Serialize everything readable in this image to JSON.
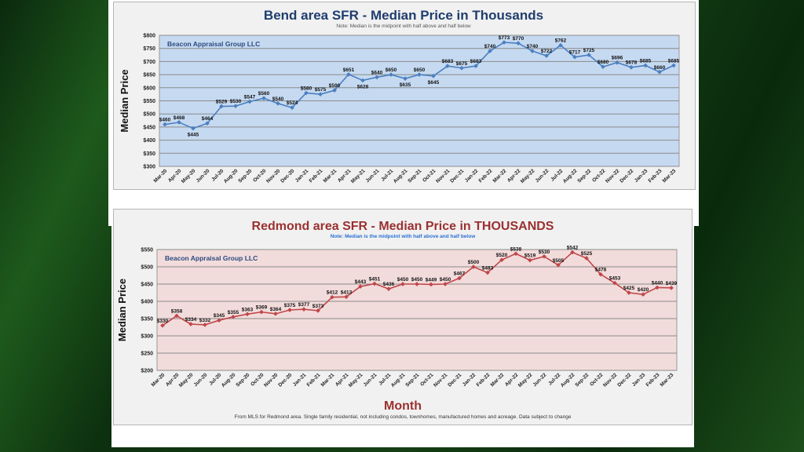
{
  "chart_data": [
    {
      "type": "line",
      "title": "Bend area SFR - Median Price in Thousands",
      "subtitle": "Note: Median is the midpoint with half above and half below",
      "watermark": "Beacon Appraisal Group LLC",
      "ylabel": "Median Price",
      "xlabel": "",
      "ylim": [
        300,
        800
      ],
      "ytick_step": 50,
      "grid": true,
      "color": "#4a7fc0",
      "plot_bg": "#c5d9f1",
      "title_color": "#1f3d6e",
      "categories": [
        "Mar-20",
        "Apr-20",
        "May-20",
        "Jun-20",
        "Jul-20",
        "Aug-20",
        "Sep-20",
        "Oct-20",
        "Nov-20",
        "Dec-20",
        "Jan-21",
        "Feb-21",
        "Mar-21",
        "Apr-21",
        "May-21",
        "Jun-21",
        "Jul-21",
        "Aug-21",
        "Sep-21",
        "Oct-21",
        "Nov-21",
        "Dec-21",
        "Jan-22",
        "Feb-22",
        "Mar-22",
        "Apr-22",
        "May-22",
        "Jun-22",
        "Jul-22",
        "Aug-22",
        "Sep-22",
        "Oct-22",
        "Nov-22",
        "Dec-22",
        "Jan-23",
        "Feb-23",
        "Mar-23"
      ],
      "values": [
        460,
        468,
        445,
        464,
        529,
        530,
        547,
        560,
        540,
        524,
        580,
        575,
        590,
        651,
        628,
        640,
        650,
        635,
        650,
        645,
        683,
        675,
        683,
        740,
        773,
        770,
        740,
        722,
        762,
        717,
        725,
        680,
        696,
        678,
        685,
        660,
        685
      ]
    },
    {
      "type": "line",
      "title": "Redmond area SFR - Median Price in THOUSANDS",
      "subtitle": "Note:  Median is the midpoint with half above and half below",
      "watermark": "Beacon Appraisal Group LLC",
      "ylabel": "Median Price",
      "xlabel": "Month",
      "footnote": "From MLS for Redmond area. Single family residential, not including condos, townhomes, manufactured homes and acreage.  Data subject to change",
      "ylim": [
        200,
        550
      ],
      "ytick_step": 50,
      "grid": true,
      "color": "#c0464a",
      "plot_bg": "#f2dcdb",
      "title_color": "#9b3030",
      "categories": [
        "Mar-20",
        "Apr-20",
        "May-20",
        "Jun-20",
        "Jul-20",
        "Aug-20",
        "Sep-20",
        "Oct-20",
        "Nov-20",
        "Dec-20",
        "Jan-21",
        "Feb-21",
        "Mar-21",
        "Apr-21",
        "May-21",
        "Jun-21",
        "Jul-21",
        "Aug-21",
        "Sep-21",
        "Oct-21",
        "Nov-21",
        "Dec-21",
        "Jan-22",
        "Feb-22",
        "Mar-22",
        "Apr-22",
        "May-22",
        "Jun-22",
        "Jul-22",
        "Aug-22",
        "Sep-22",
        "Oct-22",
        "Nov-22",
        "Dec-22",
        "Jan-23",
        "Feb-23",
        "Mar-23"
      ],
      "values": [
        330,
        358,
        334,
        332,
        345,
        355,
        363,
        369,
        364,
        375,
        377,
        373,
        412,
        413,
        443,
        451,
        436,
        450,
        450,
        449,
        450,
        467,
        500,
        483,
        520,
        538,
        519,
        530,
        505,
        542,
        525,
        478,
        453,
        425,
        420,
        440,
        439
      ]
    }
  ]
}
